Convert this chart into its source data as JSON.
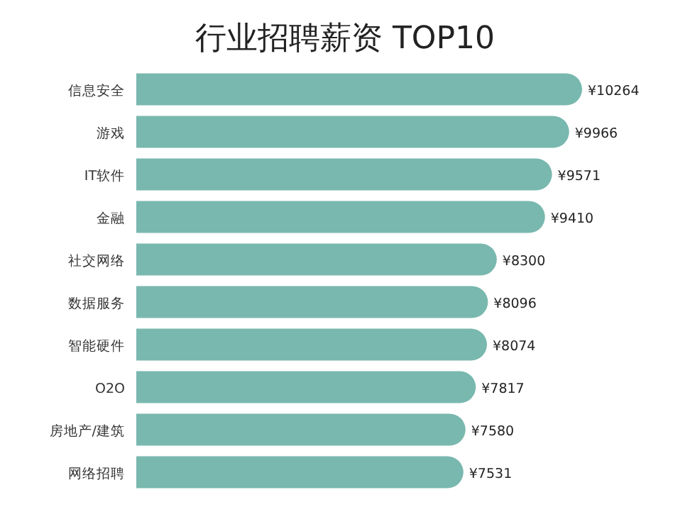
{
  "chart_data": {
    "type": "bar",
    "orientation": "horizontal",
    "title": "行业招聘薪资 TOP10",
    "categories": [
      "信息安全",
      "游戏",
      "IT软件",
      "金融",
      "社交网络",
      "数据服务",
      "智能硬件",
      "O2O",
      "房地产/建筑",
      "网络招聘"
    ],
    "values": [
      10264,
      9966,
      9571,
      9410,
      8300,
      8096,
      8074,
      7817,
      7580,
      7531
    ],
    "value_labels": [
      "¥10264",
      "¥9966",
      "¥9571",
      "¥9410",
      "¥8300",
      "¥8096",
      "¥8074",
      "¥7817",
      "¥7580",
      "¥7531"
    ],
    "color": "#79b8ae"
  }
}
